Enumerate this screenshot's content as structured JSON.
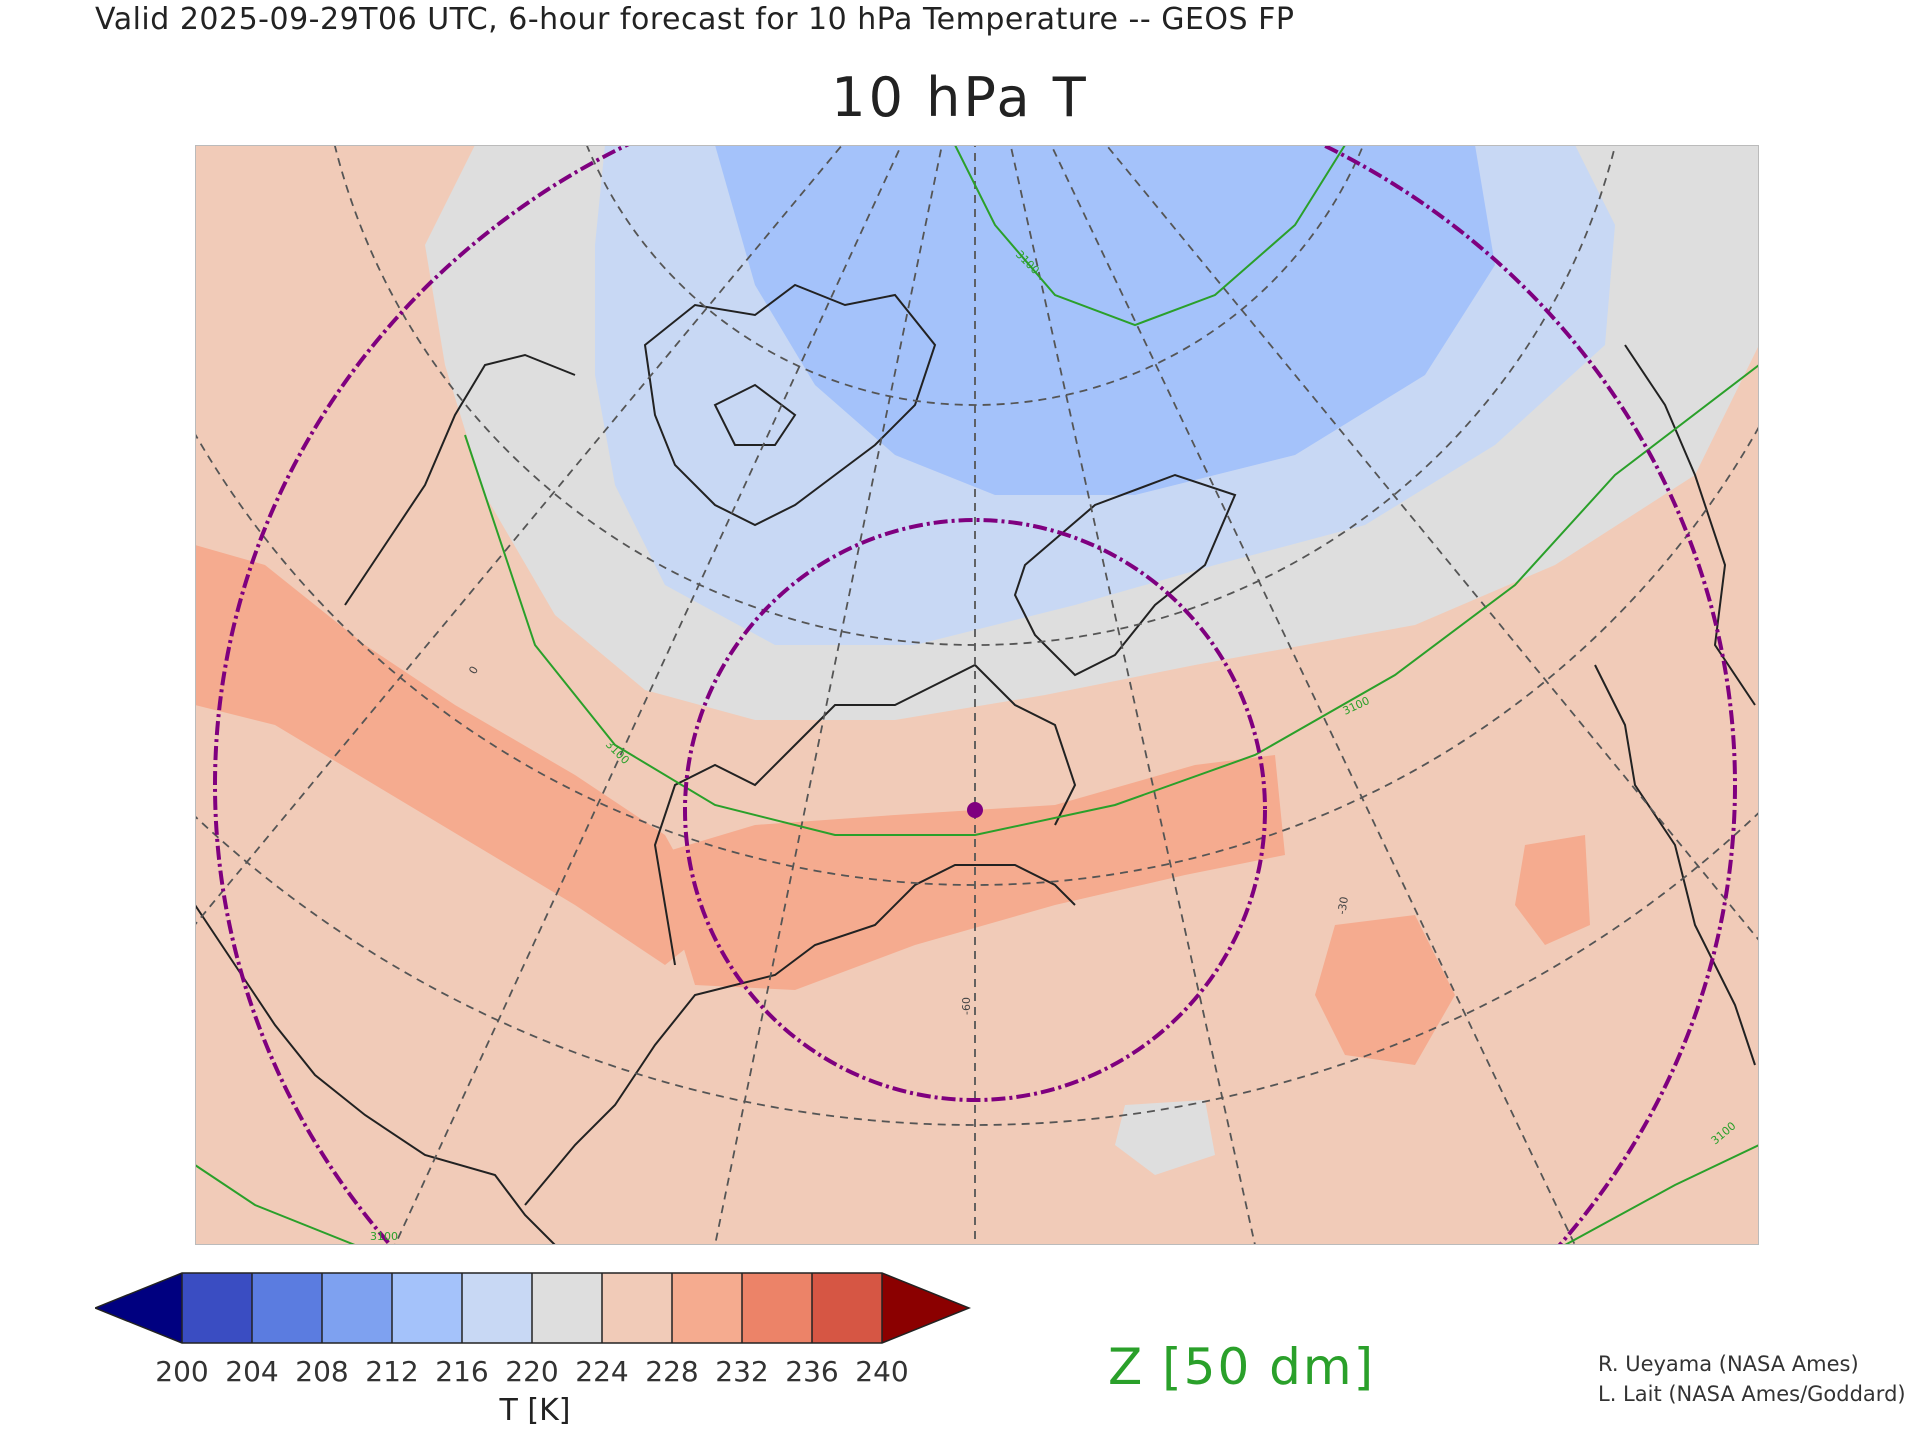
{
  "header": {
    "valid_line": "Valid 2025-09-29T06 UTC, 6-hour forecast for 10 hPa Temperature -- GEOS FP"
  },
  "title": "10 hPa T",
  "colorbar": {
    "label": "T [K]",
    "ticks": [
      "200",
      "204",
      "208",
      "212",
      "216",
      "220",
      "224",
      "228",
      "232",
      "236",
      "240"
    ],
    "colors": [
      "#000080",
      "#3a4dc2",
      "#5b7ce0",
      "#7ea1f0",
      "#a4c2fa",
      "#c8d8f4",
      "#dedede",
      "#f1cbb8",
      "#f5ab8f",
      "#ec8368",
      "#d65644",
      "#8b0000"
    ]
  },
  "map": {
    "contour_labels": [
      "3100",
      "3100",
      "3100",
      "3100",
      "3100"
    ],
    "meridian_labels": [
      "-60",
      "-30",
      "0"
    ],
    "colors": {
      "ocean_warm": "#f1cbb8",
      "band_warm": "#f5ab8f",
      "neutral": "#dedede",
      "cold": "#c8d8f4",
      "coldest": "#a4c2fa",
      "geopotential": "#2aa02a",
      "ring": "#7f007f"
    }
  },
  "overlay": {
    "z_label": "Z [50 dm]"
  },
  "credits": [
    "R. Ueyama (NASA Ames)",
    "L. Lait (NASA Ames/Goddard)"
  ]
}
